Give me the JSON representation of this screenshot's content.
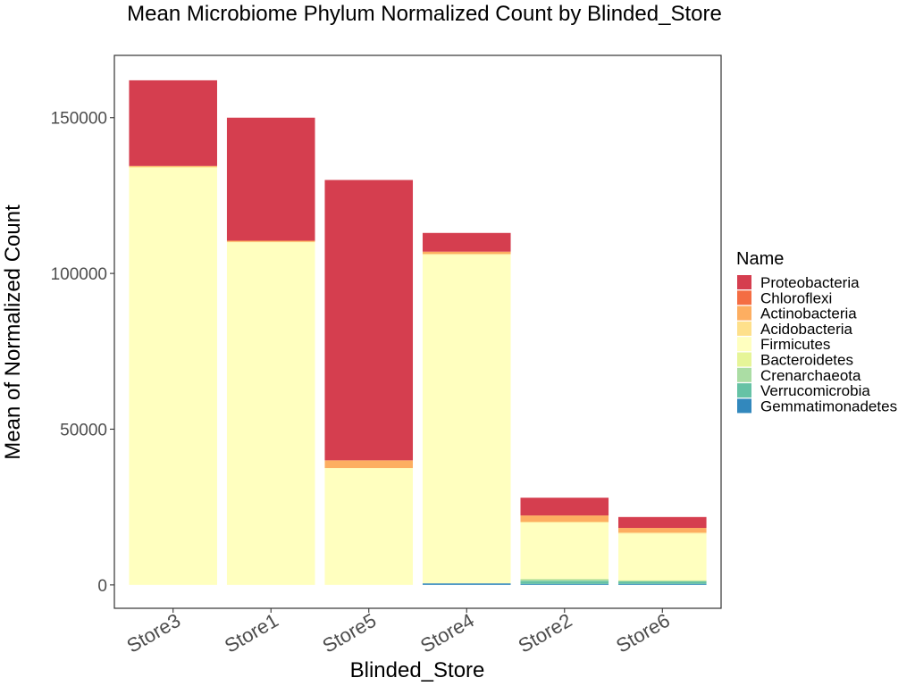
{
  "chart_data": {
    "type": "bar",
    "stacked": true,
    "title": "Mean Microbiome Phylum Normalized Count by Blinded_Store",
    "xlabel": "Blinded_Store",
    "ylabel": "Mean of Normalized Count",
    "categories": [
      "Store3",
      "Store1",
      "Store5",
      "Store4",
      "Store2",
      "Store6"
    ],
    "ylim": [
      -7500,
      170000
    ],
    "yticks": [
      0,
      50000,
      100000,
      150000
    ],
    "ytick_labels": [
      "0",
      "50000",
      "100000",
      "150000"
    ],
    "grid": false,
    "legend": {
      "title": "Name",
      "position": "right"
    },
    "series": [
      {
        "name": "Gemmatimonadetes",
        "color": "#3288bd",
        "values": [
          0,
          0,
          0,
          500,
          300,
          300
        ]
      },
      {
        "name": "Verrucomicrobia",
        "color": "#66c2a5",
        "values": [
          0,
          0,
          0,
          0,
          1000,
          800
        ]
      },
      {
        "name": "Crenarchaeota",
        "color": "#abdda4",
        "values": [
          0,
          0,
          0,
          0,
          500,
          300
        ]
      },
      {
        "name": "Bacteroidetes",
        "color": "#e6f598",
        "values": [
          0,
          0,
          0,
          0,
          200,
          100
        ]
      },
      {
        "name": "Firmicutes",
        "color": "#ffffbf",
        "values": [
          134000,
          110000,
          37500,
          105500,
          18000,
          15000
        ]
      },
      {
        "name": "Acidobacteria",
        "color": "#fee08b",
        "values": [
          300,
          200,
          0,
          300,
          300,
          300
        ]
      },
      {
        "name": "Actinobacteria",
        "color": "#fdae61",
        "values": [
          200,
          300,
          2500,
          700,
          2000,
          1500
        ]
      },
      {
        "name": "Chloroflexi",
        "color": "#f46d43",
        "values": [
          0,
          0,
          0,
          0,
          0,
          0
        ]
      },
      {
        "name": "Proteobacteria",
        "color": "#d53e4f",
        "values": [
          27500,
          39500,
          90000,
          6000,
          5700,
          3500
        ]
      }
    ],
    "legend_order": [
      "Proteobacteria",
      "Chloroflexi",
      "Actinobacteria",
      "Acidobacteria",
      "Firmicutes",
      "Bacteroidetes",
      "Crenarchaeota",
      "Verrucomicrobia",
      "Gemmatimonadetes"
    ]
  }
}
